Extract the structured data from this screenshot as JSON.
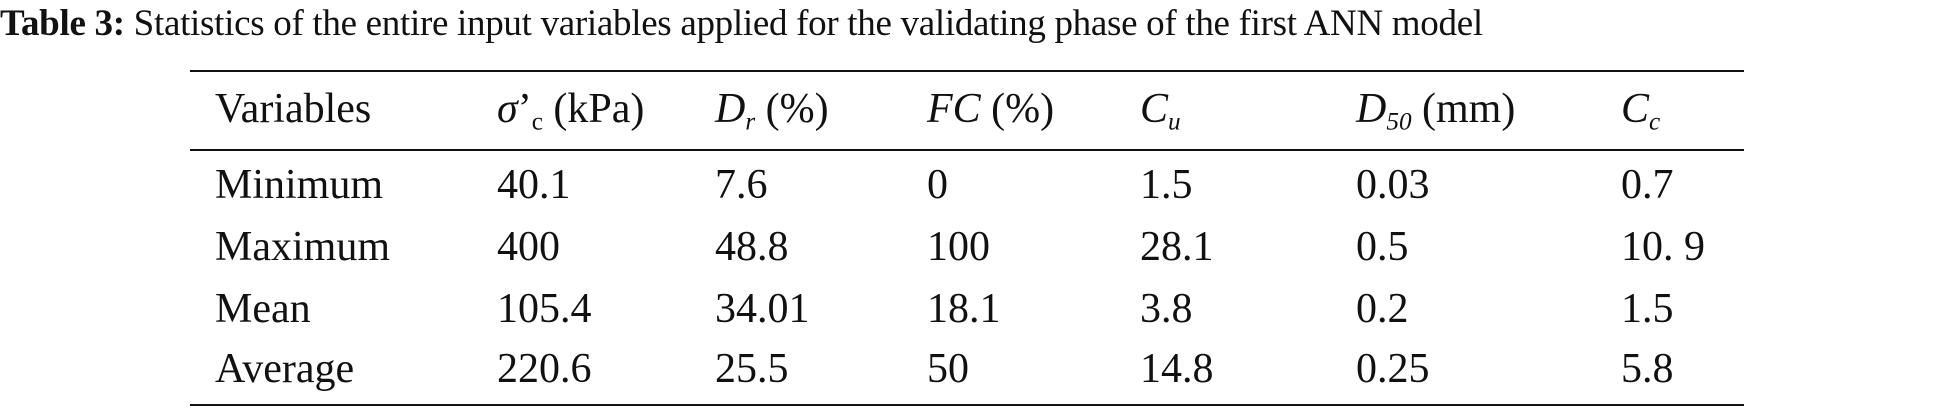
{
  "caption": {
    "label": "Table 3:",
    "text": " Statistics of the entire input variables applied for the validating phase of the first ANN model"
  },
  "table": {
    "header": [
      [
        {
          "text": "Variables"
        }
      ],
      [
        {
          "text": "σ",
          "style": "italic"
        },
        {
          "text": "’"
        },
        {
          "text": "c",
          "style": "sub"
        },
        {
          "text": " (kPa)"
        }
      ],
      [
        {
          "text": "D",
          "style": "italic"
        },
        {
          "text": "r",
          "style": "italic-sub"
        },
        {
          "text": " (%)"
        }
      ],
      [
        {
          "text": "FC",
          "style": "italic"
        },
        {
          "text": " (%)"
        }
      ],
      [
        {
          "text": "C",
          "style": "italic"
        },
        {
          "text": "u",
          "style": "italic-sub"
        }
      ],
      [
        {
          "text": "D",
          "style": "italic"
        },
        {
          "text": "50",
          "style": "italic-sub"
        },
        {
          "text": " (mm)"
        }
      ],
      [
        {
          "text": "C",
          "style": "italic"
        },
        {
          "text": "c",
          "style": "italic-sub"
        }
      ]
    ],
    "rows": [
      [
        "Minimum",
        40.1,
        7.6,
        0,
        1.5,
        0.03,
        0.7
      ],
      [
        "Maximum",
        400,
        48.8,
        100,
        28.1,
        0.5,
        "10. 9"
      ],
      [
        "Mean",
        105.4,
        34.01,
        18.1,
        3.8,
        0.2,
        1.5
      ],
      [
        "Average",
        220.6,
        25.5,
        50,
        14.8,
        0.25,
        5.8
      ]
    ]
  }
}
